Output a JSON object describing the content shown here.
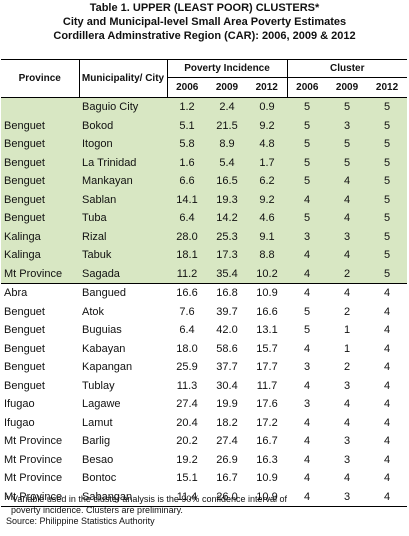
{
  "title": {
    "line1": "Table 1.  UPPER  (LEAST POOR) CLUSTERS*",
    "line2": "City and Municipal-level Small Area Poverty Estimates",
    "line3": "Cordillera Adminstrative Region (CAR): 2006, 2009 & 2012"
  },
  "headers": {
    "province": "Province",
    "municipality": "Municipality/ City",
    "poverty_incidence": "Poverty Incidence",
    "cluster": "Cluster",
    "years": [
      "2006",
      "2009",
      "2012",
      "2006",
      "2009",
      "2012"
    ]
  },
  "rows": [
    {
      "province": "",
      "municipality": "Baguio City",
      "p2006": "1.2",
      "p2009": "2.4",
      "p2012": "0.9",
      "c2006": "5",
      "c2009": "5",
      "c2012": "5"
    },
    {
      "province": "Benguet",
      "municipality": "Bokod",
      "p2006": "5.1",
      "p2009": "21.5",
      "p2012": "9.2",
      "c2006": "5",
      "c2009": "3",
      "c2012": "5"
    },
    {
      "province": "Benguet",
      "municipality": "Itogon",
      "p2006": "5.8",
      "p2009": "8.9",
      "p2012": "4.8",
      "c2006": "5",
      "c2009": "5",
      "c2012": "5"
    },
    {
      "province": "Benguet",
      "municipality": "La Trinidad",
      "p2006": "1.6",
      "p2009": "5.4",
      "p2012": "1.7",
      "c2006": "5",
      "c2009": "5",
      "c2012": "5"
    },
    {
      "province": "Benguet",
      "municipality": "Mankayan",
      "p2006": "6.6",
      "p2009": "16.5",
      "p2012": "6.2",
      "c2006": "5",
      "c2009": "4",
      "c2012": "5"
    },
    {
      "province": "Benguet",
      "municipality": "Sablan",
      "p2006": "14.1",
      "p2009": "19.3",
      "p2012": "9.2",
      "c2006": "4",
      "c2009": "4",
      "c2012": "5"
    },
    {
      "province": "Benguet",
      "municipality": "Tuba",
      "p2006": "6.4",
      "p2009": "14.2",
      "p2012": "4.6",
      "c2006": "5",
      "c2009": "4",
      "c2012": "5"
    },
    {
      "province": "Kalinga",
      "municipality": "Rizal",
      "p2006": "28.0",
      "p2009": "25.3",
      "p2012": "9.1",
      "c2006": "3",
      "c2009": "3",
      "c2012": "5"
    },
    {
      "province": "Kalinga",
      "municipality": "Tabuk",
      "p2006": "18.1",
      "p2009": "17.3",
      "p2012": "8.8",
      "c2006": "4",
      "c2009": "4",
      "c2012": "5"
    },
    {
      "province": "Mt Province",
      "municipality": "Sagada",
      "p2006": "11.2",
      "p2009": "35.4",
      "p2012": "10.2",
      "c2006": "4",
      "c2009": "2",
      "c2012": "5"
    },
    {
      "province": "Abra",
      "municipality": "Bangued",
      "p2006": "16.6",
      "p2009": "16.8",
      "p2012": "10.9",
      "c2006": "4",
      "c2009": "4",
      "c2012": "4"
    },
    {
      "province": "Benguet",
      "municipality": "Atok",
      "p2006": "7.6",
      "p2009": "39.7",
      "p2012": "16.6",
      "c2006": "5",
      "c2009": "2",
      "c2012": "4"
    },
    {
      "province": "Benguet",
      "municipality": "Buguias",
      "p2006": "6.4",
      "p2009": "42.0",
      "p2012": "13.1",
      "c2006": "5",
      "c2009": "1",
      "c2012": "4"
    },
    {
      "province": "Benguet",
      "municipality": "Kabayan",
      "p2006": "18.0",
      "p2009": "58.6",
      "p2012": "15.7",
      "c2006": "4",
      "c2009": "1",
      "c2012": "4"
    },
    {
      "province": "Benguet",
      "municipality": "Kapangan",
      "p2006": "25.9",
      "p2009": "37.7",
      "p2012": "17.7",
      "c2006": "3",
      "c2009": "2",
      "c2012": "4"
    },
    {
      "province": "Benguet",
      "municipality": "Tublay",
      "p2006": "11.3",
      "p2009": "30.4",
      "p2012": "11.7",
      "c2006": "4",
      "c2009": "3",
      "c2012": "4"
    },
    {
      "province": "Ifugao",
      "municipality": "Lagawe",
      "p2006": "27.4",
      "p2009": "19.9",
      "p2012": "17.6",
      "c2006": "3",
      "c2009": "4",
      "c2012": "4"
    },
    {
      "province": "Ifugao",
      "municipality": "Lamut",
      "p2006": "20.4",
      "p2009": "18.2",
      "p2012": "17.2",
      "c2006": "4",
      "c2009": "4",
      "c2012": "4"
    },
    {
      "province": "Mt Province",
      "municipality": "Barlig",
      "p2006": "20.2",
      "p2009": "27.4",
      "p2012": "16.7",
      "c2006": "4",
      "c2009": "3",
      "c2012": "4"
    },
    {
      "province": "Mt Province",
      "municipality": "Besao",
      "p2006": "19.2",
      "p2009": "26.9",
      "p2012": "16.3",
      "c2006": "4",
      "c2009": "3",
      "c2012": "4"
    },
    {
      "province": "Mt Province",
      "municipality": "Bontoc",
      "p2006": "15.1",
      "p2009": "16.7",
      "p2012": "10.9",
      "c2006": "4",
      "c2009": "4",
      "c2012": "4"
    },
    {
      "province": "Mt Province",
      "municipality": "Sabangan",
      "p2006": "11.4",
      "p2009": "26.0",
      "p2012": "10.9",
      "c2006": "4",
      "c2009": "3",
      "c2012": "4"
    }
  ],
  "footnote": {
    "line1": "* Variable used in the cluster analysis is the 90% confidence interval of",
    "line2": "poverty incidence.  Clusters are preliminary.",
    "source": "Source: Philippine Statistics Authority"
  },
  "colors": {
    "green_band": "#d8e7c3",
    "rule": "#000000"
  }
}
